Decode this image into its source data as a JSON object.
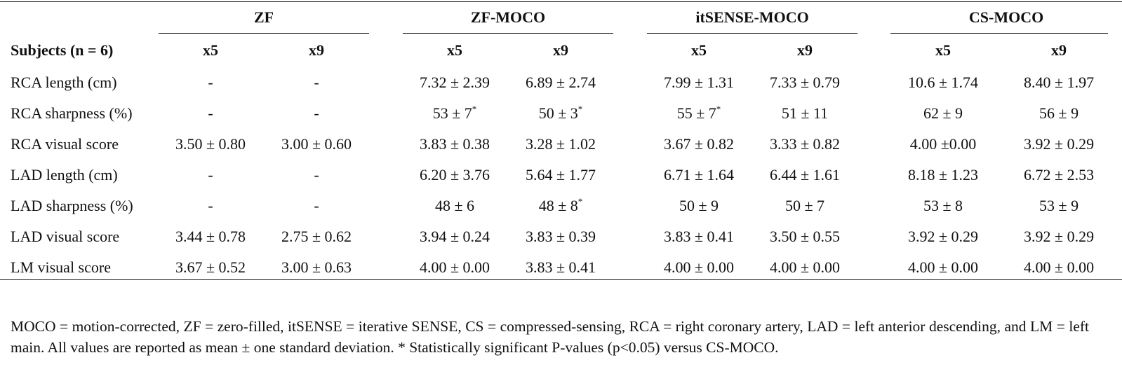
{
  "table": {
    "row_header_label": "Subjects (n = 6)",
    "groups": [
      {
        "name": "ZF",
        "subcols": [
          "x5",
          "x9"
        ]
      },
      {
        "name": "ZF-MOCO",
        "subcols": [
          "x5",
          "x9"
        ]
      },
      {
        "name": "itSENSE-MOCO",
        "subcols": [
          "x5",
          "x9"
        ]
      },
      {
        "name": "CS-MOCO",
        "subcols": [
          "x5",
          "x9"
        ]
      }
    ],
    "rows": [
      {
        "label": "RCA length (cm)",
        "cells": [
          {
            "text": "-"
          },
          {
            "text": "-"
          },
          {
            "text": "7.32 ± 2.39"
          },
          {
            "text": "6.89 ± 2.74"
          },
          {
            "text": "7.99 ± 1.31"
          },
          {
            "text": "7.33 ± 0.79"
          },
          {
            "text": "10.6 ± 1.74"
          },
          {
            "text": "8.40 ± 1.97"
          }
        ]
      },
      {
        "label": "RCA sharpness (%)",
        "cells": [
          {
            "text": "-"
          },
          {
            "text": "-"
          },
          {
            "text": "53 ± 7",
            "mark": "*"
          },
          {
            "text": "50 ± 3",
            "mark": "*"
          },
          {
            "text": "55 ± 7",
            "mark": "*"
          },
          {
            "text": "51 ± 11"
          },
          {
            "text": "62 ± 9"
          },
          {
            "text": "56 ± 9"
          }
        ]
      },
      {
        "label": "RCA visual score",
        "cells": [
          {
            "text": "3.50 ± 0.80"
          },
          {
            "text": "3.00 ± 0.60"
          },
          {
            "text": "3.83 ± 0.38"
          },
          {
            "text": "3.28 ± 1.02"
          },
          {
            "text": "3.67 ± 0.82"
          },
          {
            "text": "3.33 ± 0.82"
          },
          {
            "text": "4.00 ±0.00"
          },
          {
            "text": "3.92 ± 0.29"
          }
        ]
      },
      {
        "label": "LAD length (cm)",
        "cells": [
          {
            "text": "-"
          },
          {
            "text": "-"
          },
          {
            "text": "6.20 ± 3.76"
          },
          {
            "text": "5.64 ± 1.77"
          },
          {
            "text": "6.71 ± 1.64"
          },
          {
            "text": "6.44 ± 1.61"
          },
          {
            "text": "8.18 ± 1.23"
          },
          {
            "text": "6.72 ± 2.53"
          }
        ]
      },
      {
        "label": "LAD sharpness (%)",
        "cells": [
          {
            "text": "-"
          },
          {
            "text": "-"
          },
          {
            "text": "48 ± 6"
          },
          {
            "text": "48 ± 8",
            "mark": "*"
          },
          {
            "text": "50 ± 9"
          },
          {
            "text": "50 ± 7"
          },
          {
            "text": "53 ± 8"
          },
          {
            "text": "53 ± 9"
          }
        ]
      },
      {
        "label": "LAD visual score",
        "cells": [
          {
            "text": "3.44 ± 0.78"
          },
          {
            "text": "2.75 ± 0.62"
          },
          {
            "text": "3.94 ± 0.24"
          },
          {
            "text": "3.83 ± 0.39"
          },
          {
            "text": "3.83 ± 0.41"
          },
          {
            "text": "3.50 ± 0.55"
          },
          {
            "text": "3.92 ± 0.29"
          },
          {
            "text": "3.92 ± 0.29"
          }
        ]
      },
      {
        "label": "LM visual score",
        "cells": [
          {
            "text": "3.67 ± 0.52"
          },
          {
            "text": "3.00 ± 0.63"
          },
          {
            "text": "4.00 ± 0.00"
          },
          {
            "text": "3.83 ± 0.41"
          },
          {
            "text": "4.00 ± 0.00"
          },
          {
            "text": "4.00 ± 0.00"
          },
          {
            "text": "4.00 ± 0.00"
          },
          {
            "text": "4.00 ± 0.00"
          }
        ]
      }
    ]
  },
  "caption": "MOCO = motion-corrected, ZF = zero-filled, itSENSE = iterative SENSE, CS = compressed-sensing, RCA = right coronary artery, LAD = left anterior descending, and LM = left main. All values are reported as mean ± one standard deviation. * Statistically significant P-values (p<0.05) versus CS-MOCO."
}
